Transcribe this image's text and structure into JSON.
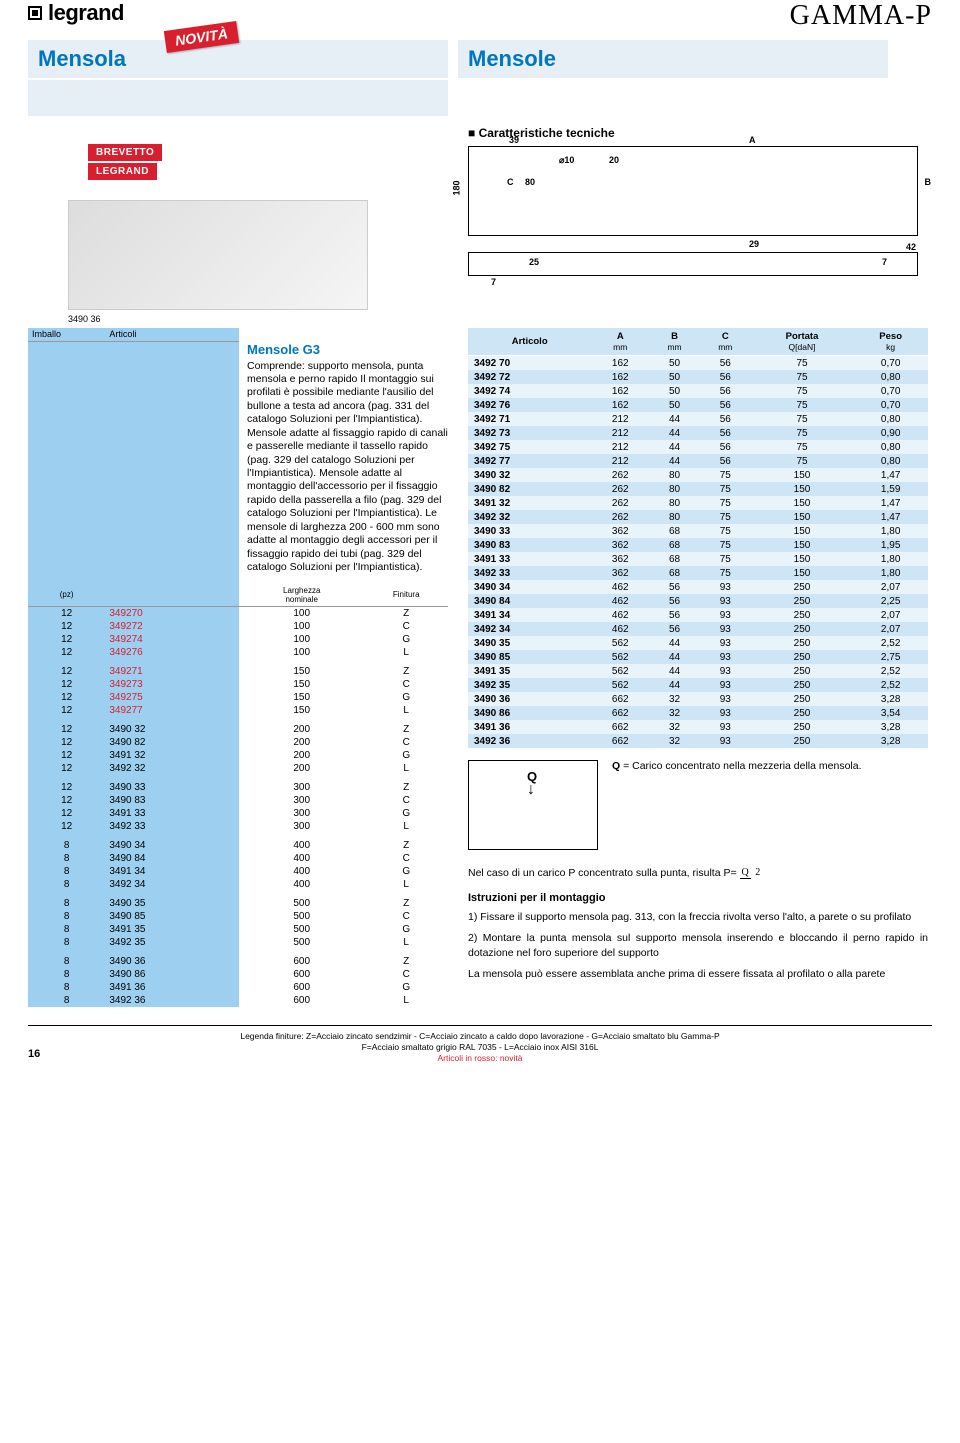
{
  "brand": "legrand",
  "series": "GAMMA-P",
  "title_left": "Mensola",
  "title_right": "Mensole",
  "novita": "NOVITÀ",
  "brevetto": "BREVETTO",
  "brevetto2": "LEGRAND",
  "photo_caption": "3490 36",
  "tech_title": "Caratteristiche tecniche",
  "diagram_labels": {
    "d39": "39",
    "d10": "⌀10",
    "d20": "20",
    "A": "A",
    "B": "B",
    "C": "C",
    "d180": "180",
    "d80": "80",
    "d29": "29",
    "d42": "42",
    "d25": "25",
    "d7a": "7",
    "d7b": "7"
  },
  "left_headers": {
    "imballo": "Imballo",
    "articoli": "Articoli",
    "larghezza": "Larghezza",
    "nominale": "nominale",
    "finitura": "Finitura",
    "pz": "(pz)"
  },
  "g3_title": "Mensole G3",
  "description": "Comprende: supporto mensola, punta mensola e perno rapido\nIl montaggio sui profilati è possibile mediante l'ausilio del bullone a testa ad ancora (pag. 331 del catalogo Soluzioni per l'Impiantistica). Mensole adatte al fissaggio rapido di canali e passerelle mediante il tassello rapido (pag. 329 del catalogo Soluzioni per l'Impiantistica). Mensole adatte al montaggio dell'accessorio per il fissaggio rapido della passerella a filo (pag. 329 del catalogo Soluzioni per l'Impiantistica). Le mensole di larghezza 200 - 600 mm sono adatte al montaggio degli accessori per il fissaggio rapido dei tubi (pag. 329 del catalogo Soluzioni per l'Impiantistica).",
  "left_rows": [
    {
      "pz": "12",
      "art": "349270",
      "larg": "100",
      "fin": "Z",
      "red": true,
      "gap": false
    },
    {
      "pz": "12",
      "art": "349272",
      "larg": "100",
      "fin": "C",
      "red": true,
      "gap": false
    },
    {
      "pz": "12",
      "art": "349274",
      "larg": "100",
      "fin": "G",
      "red": true,
      "gap": false
    },
    {
      "pz": "12",
      "art": "349276",
      "larg": "100",
      "fin": "L",
      "red": true,
      "gap": false
    },
    {
      "pz": "12",
      "art": "349271",
      "larg": "150",
      "fin": "Z",
      "red": true,
      "gap": true
    },
    {
      "pz": "12",
      "art": "349273",
      "larg": "150",
      "fin": "C",
      "red": true,
      "gap": false
    },
    {
      "pz": "12",
      "art": "349275",
      "larg": "150",
      "fin": "G",
      "red": true,
      "gap": false
    },
    {
      "pz": "12",
      "art": "349277",
      "larg": "150",
      "fin": "L",
      "red": true,
      "gap": false
    },
    {
      "pz": "12",
      "art": "3490 32",
      "larg": "200",
      "fin": "Z",
      "red": false,
      "gap": true
    },
    {
      "pz": "12",
      "art": "3490 82",
      "larg": "200",
      "fin": "C",
      "red": false,
      "gap": false
    },
    {
      "pz": "12",
      "art": "3491 32",
      "larg": "200",
      "fin": "G",
      "red": false,
      "gap": false
    },
    {
      "pz": "12",
      "art": "3492 32",
      "larg": "200",
      "fin": "L",
      "red": false,
      "gap": false
    },
    {
      "pz": "12",
      "art": "3490 33",
      "larg": "300",
      "fin": "Z",
      "red": false,
      "gap": true
    },
    {
      "pz": "12",
      "art": "3490 83",
      "larg": "300",
      "fin": "C",
      "red": false,
      "gap": false
    },
    {
      "pz": "12",
      "art": "3491 33",
      "larg": "300",
      "fin": "G",
      "red": false,
      "gap": false
    },
    {
      "pz": "12",
      "art": "3492 33",
      "larg": "300",
      "fin": "L",
      "red": false,
      "gap": false
    },
    {
      "pz": "8",
      "art": "3490 34",
      "larg": "400",
      "fin": "Z",
      "red": false,
      "gap": true
    },
    {
      "pz": "8",
      "art": "3490 84",
      "larg": "400",
      "fin": "C",
      "red": false,
      "gap": false
    },
    {
      "pz": "8",
      "art": "3491 34",
      "larg": "400",
      "fin": "G",
      "red": false,
      "gap": false
    },
    {
      "pz": "8",
      "art": "3492 34",
      "larg": "400",
      "fin": "L",
      "red": false,
      "gap": false
    },
    {
      "pz": "8",
      "art": "3490 35",
      "larg": "500",
      "fin": "Z",
      "red": false,
      "gap": true
    },
    {
      "pz": "8",
      "art": "3490 85",
      "larg": "500",
      "fin": "C",
      "red": false,
      "gap": false
    },
    {
      "pz": "8",
      "art": "3491 35",
      "larg": "500",
      "fin": "G",
      "red": false,
      "gap": false
    },
    {
      "pz": "8",
      "art": "3492 35",
      "larg": "500",
      "fin": "L",
      "red": false,
      "gap": false
    },
    {
      "pz": "8",
      "art": "3490 36",
      "larg": "600",
      "fin": "Z",
      "red": false,
      "gap": true
    },
    {
      "pz": "8",
      "art": "3490 86",
      "larg": "600",
      "fin": "C",
      "red": false,
      "gap": false
    },
    {
      "pz": "8",
      "art": "3491 36",
      "larg": "600",
      "fin": "G",
      "red": false,
      "gap": false
    },
    {
      "pz": "8",
      "art": "3492 36",
      "larg": "600",
      "fin": "L",
      "red": false,
      "gap": false
    }
  ],
  "right_headers": {
    "articolo": "Articolo",
    "A": "A",
    "A_sub": "mm",
    "B": "B",
    "B_sub": "mm",
    "C": "C",
    "C_sub": "mm",
    "portata": "Portata",
    "portata_sub": "Q[daN]",
    "peso": "Peso",
    "peso_sub": "kg"
  },
  "right_rows": [
    {
      "art": "3492 70",
      "A": "162",
      "B": "50",
      "C": "56",
      "Q": "75",
      "P": "0,70"
    },
    {
      "art": "3492 72",
      "A": "162",
      "B": "50",
      "C": "56",
      "Q": "75",
      "P": "0,80"
    },
    {
      "art": "3492 74",
      "A": "162",
      "B": "50",
      "C": "56",
      "Q": "75",
      "P": "0,70"
    },
    {
      "art": "3492 76",
      "A": "162",
      "B": "50",
      "C": "56",
      "Q": "75",
      "P": "0,70"
    },
    {
      "art": "3492 71",
      "A": "212",
      "B": "44",
      "C": "56",
      "Q": "75",
      "P": "0,80"
    },
    {
      "art": "3492 73",
      "A": "212",
      "B": "44",
      "C": "56",
      "Q": "75",
      "P": "0,90"
    },
    {
      "art": "3492 75",
      "A": "212",
      "B": "44",
      "C": "56",
      "Q": "75",
      "P": "0,80"
    },
    {
      "art": "3492 77",
      "A": "212",
      "B": "44",
      "C": "56",
      "Q": "75",
      "P": "0,80"
    },
    {
      "art": "3490 32",
      "A": "262",
      "B": "80",
      "C": "75",
      "Q": "150",
      "P": "1,47"
    },
    {
      "art": "3490 82",
      "A": "262",
      "B": "80",
      "C": "75",
      "Q": "150",
      "P": "1,59"
    },
    {
      "art": "3491 32",
      "A": "262",
      "B": "80",
      "C": "75",
      "Q": "150",
      "P": "1,47"
    },
    {
      "art": "3492 32",
      "A": "262",
      "B": "80",
      "C": "75",
      "Q": "150",
      "P": "1,47"
    },
    {
      "art": "3490 33",
      "A": "362",
      "B": "68",
      "C": "75",
      "Q": "150",
      "P": "1,80"
    },
    {
      "art": "3490 83",
      "A": "362",
      "B": "68",
      "C": "75",
      "Q": "150",
      "P": "1,95"
    },
    {
      "art": "3491 33",
      "A": "362",
      "B": "68",
      "C": "75",
      "Q": "150",
      "P": "1,80"
    },
    {
      "art": "3492 33",
      "A": "362",
      "B": "68",
      "C": "75",
      "Q": "150",
      "P": "1,80"
    },
    {
      "art": "3490 34",
      "A": "462",
      "B": "56",
      "C": "93",
      "Q": "250",
      "P": "2,07"
    },
    {
      "art": "3490 84",
      "A": "462",
      "B": "56",
      "C": "93",
      "Q": "250",
      "P": "2,25"
    },
    {
      "art": "3491 34",
      "A": "462",
      "B": "56",
      "C": "93",
      "Q": "250",
      "P": "2,07"
    },
    {
      "art": "3492 34",
      "A": "462",
      "B": "56",
      "C": "93",
      "Q": "250",
      "P": "2,07"
    },
    {
      "art": "3490 35",
      "A": "562",
      "B": "44",
      "C": "93",
      "Q": "250",
      "P": "2,52"
    },
    {
      "art": "3490 85",
      "A": "562",
      "B": "44",
      "C": "93",
      "Q": "250",
      "P": "2,75"
    },
    {
      "art": "3491 35",
      "A": "562",
      "B": "44",
      "C": "93",
      "Q": "250",
      "P": "2,52"
    },
    {
      "art": "3492 35",
      "A": "562",
      "B": "44",
      "C": "93",
      "Q": "250",
      "P": "2,52"
    },
    {
      "art": "3490 36",
      "A": "662",
      "B": "32",
      "C": "93",
      "Q": "250",
      "P": "3,28"
    },
    {
      "art": "3490 86",
      "A": "662",
      "B": "32",
      "C": "93",
      "Q": "250",
      "P": "3,54"
    },
    {
      "art": "3491 36",
      "A": "662",
      "B": "32",
      "C": "93",
      "Q": "250",
      "P": "3,28"
    },
    {
      "art": "3492 36",
      "A": "662",
      "B": "32",
      "C": "93",
      "Q": "250",
      "P": "3,28"
    }
  ],
  "q_label": "Q",
  "q_note_prefix": "Q",
  "q_note": " = Carico concentrato nella mezzeria della mensola.",
  "formula_text": "Nel caso di un carico P concentrato sulla punta, risulta P= ",
  "formula_num": "Q",
  "formula_den": "2",
  "istr_title": "Istruzioni per il montaggio",
  "istr_1": "1) Fissare il supporto mensola pag. 313, con la freccia rivolta verso l'alto, a parete o su profilato",
  "istr_2": "2) Montare la punta mensola sul supporto mensola inserendo e bloccando il perno rapido in dotazione nel foro superiore del supporto",
  "istr_3": "La mensola può essere assemblata anche prima di essere fissata al profilato o alla parete",
  "footer_1": "Legenda finiture: Z=Acciaio zincato sendzimir - C=Acciaio zincato a caldo dopo lavorazione - G=Acciaio smaltato blu Gamma-P",
  "footer_2": "F=Acciaio smaltato grigio RAL 7035 - L=Acciaio inox AISI 316L",
  "footer_3": "Articoli in rosso: novità",
  "page_num": "16",
  "colors": {
    "blue_primary": "#0076c0",
    "blue_bg_light": "#e6eef6",
    "blue_table_header": "#cde5f5",
    "blue_table_row": "#e8f3fa",
    "blue_highlight": "#9dcff0",
    "red": "#d91f2e"
  }
}
